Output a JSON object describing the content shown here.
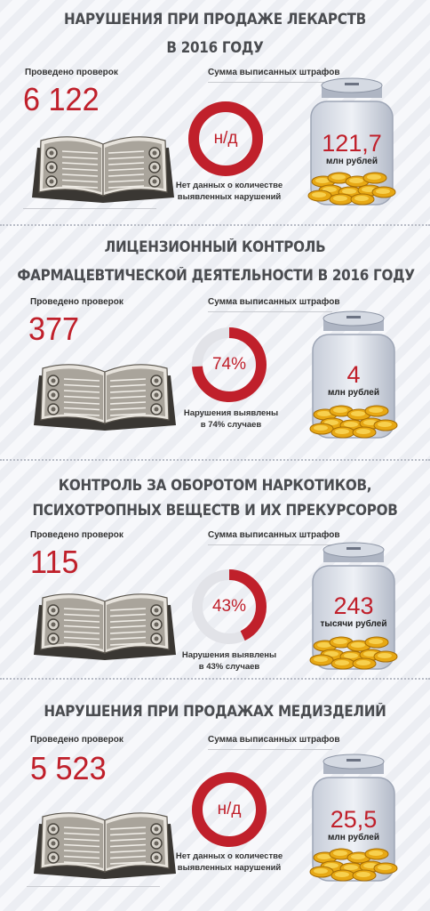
{
  "sections": [
    {
      "title_line1": "НАРУШЕНИЯ ПРИ ПРОДАЖЕ ЛЕКАРСТВ",
      "title_line2": "В 2016 ГОДУ",
      "checks_label": "Проведено проверок",
      "checks_value": "6 122",
      "ring_text": "н/д",
      "ring_fraction": 1.0,
      "ring_caption_line1": "Нет данных о количестве",
      "ring_caption_line2": "выявленных нарушений",
      "fines_label": "Сумма выписанных штрафов",
      "fines_value": "121,7",
      "fines_unit": "млн рублей"
    },
    {
      "title_line1": "ЛИЦЕНЗИОННЫЙ КОНТРОЛЬ",
      "title_line2": "ФАРМАЦЕВТИЧЕСКОЙ ДЕЯТЕЛЬНОСТИ В 2016 ГОДУ",
      "checks_label": "Проведено проверок",
      "checks_value": "377",
      "ring_text": "74%",
      "ring_fraction": 0.74,
      "ring_caption_line1": "Нарушения выявлены",
      "ring_caption_line2": "в 74% случаев",
      "fines_label": "Сумма выписанных штрафов",
      "fines_value": "4",
      "fines_unit": "млн рублей"
    },
    {
      "title_line1": "КОНТРОЛЬ ЗА ОБОРОТОМ НАРКОТИКОВ,",
      "title_line2": "ПСИХОТРОПНЫХ ВЕЩЕСТВ И ИХ ПРЕКУРСОРОВ",
      "checks_label": "Проведено проверок",
      "checks_value": "115",
      "ring_text": "43%",
      "ring_fraction": 0.43,
      "ring_caption_line1": "Нарушения выявлены",
      "ring_caption_line2": "в 43% случаев",
      "fines_label": "Сумма выписанных штрафов",
      "fines_value": "243",
      "fines_unit": "тысячи рублей"
    },
    {
      "title_line1": "НАРУШЕНИЯ ПРИ ПРОДАЖАХ МЕДИЗДЕЛИЙ",
      "title_line2": "",
      "checks_label": "Проведено проверок",
      "checks_value": "5 523",
      "ring_text": "н/д",
      "ring_fraction": 1.0,
      "ring_caption_line1": "Нет данных о количестве",
      "ring_caption_line2": "выявленных нарушений",
      "fines_label": "Сумма выписанных штрафов",
      "fines_value": "25,5",
      "fines_unit": "млн рублей"
    }
  ],
  "colors": {
    "accent_red": "#c0202b",
    "ring_empty": "#e2e3e8",
    "title_gray": "#4a4c50"
  },
  "icons": {
    "book": "open-book-icon",
    "jar": "coin-jar-icon"
  }
}
